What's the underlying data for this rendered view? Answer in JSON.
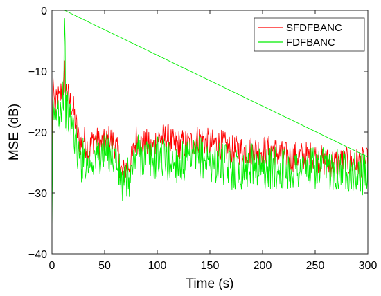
{
  "chart_data": {
    "type": "line",
    "title": "",
    "xlabel": "Time (s)",
    "ylabel": "MSE (dB)",
    "xlim": [
      0,
      300
    ],
    "ylim": [
      -40,
      0
    ],
    "xticks": [
      0,
      50,
      100,
      150,
      200,
      250,
      300
    ],
    "yticks": [
      0,
      -10,
      -20,
      -30,
      -40
    ],
    "xtick_labels": [
      "0",
      "50",
      "100",
      "150",
      "200",
      "250",
      "300"
    ],
    "ytick_labels": [
      "0",
      "−10",
      "−20",
      "−30",
      "−40"
    ],
    "grid": false,
    "legend_position": "top-right",
    "series": [
      {
        "name": "SFDFBANC",
        "color": "#ff0000",
        "x": [
          0,
          1,
          2,
          3,
          5,
          7,
          9,
          10,
          11,
          12,
          13,
          15,
          17,
          20,
          23,
          25,
          28,
          30,
          35,
          40,
          45,
          50,
          55,
          60,
          63,
          65,
          67,
          70,
          75,
          78,
          80,
          85,
          90,
          95,
          100,
          105,
          110,
          115,
          120,
          130,
          140,
          150,
          160,
          170,
          180,
          190,
          200,
          210,
          220,
          230,
          240,
          250,
          260,
          270,
          280,
          290,
          300
        ],
        "y": [
          -30,
          -11,
          -14,
          -17,
          -14,
          -15,
          -13,
          -12,
          -13,
          -10,
          -13,
          -14,
          -15,
          -16,
          -19,
          -21,
          -22,
          -21,
          -23,
          -21,
          -22,
          -22,
          -21,
          -22,
          -24,
          -26,
          -27,
          -26,
          -25,
          -23,
          -21,
          -22,
          -22,
          -23,
          -21,
          -21,
          -21,
          -22,
          -22,
          -22,
          -21,
          -22,
          -22,
          -23,
          -23,
          -23,
          -23,
          -23,
          -24,
          -24,
          -24,
          -24,
          -25,
          -25,
          -25,
          -25,
          -25
        ]
      },
      {
        "name": "FDFBANC",
        "color": "#00ee00",
        "x": [
          0,
          1,
          2,
          3,
          5,
          7,
          9,
          10,
          11,
          12,
          13,
          15,
          17,
          20,
          23,
          25,
          28,
          30,
          35,
          40,
          45,
          50,
          55,
          60,
          63,
          65,
          67,
          70,
          75,
          78,
          80,
          85,
          90,
          95,
          100,
          105,
          110,
          115,
          120,
          130,
          140,
          150,
          160,
          170,
          180,
          190,
          200,
          210,
          220,
          230,
          240,
          250,
          260,
          270,
          280,
          290,
          300
        ],
        "y": [
          -36,
          -14,
          -18,
          -20,
          -16,
          -17,
          -15,
          -13,
          -14,
          0,
          -16,
          -17,
          -18,
          -19,
          -22,
          -24,
          -25,
          -24,
          -25,
          -24,
          -24,
          -24,
          -23,
          -24,
          -26,
          -28,
          -29,
          -28,
          -27,
          -25,
          -23,
          -24,
          -24,
          -25,
          -24,
          -24,
          -25,
          -25,
          -25,
          -25,
          -24,
          -25,
          -25,
          -26,
          -26,
          -25,
          -26,
          -26,
          -26,
          -26,
          -26,
          -26,
          -26,
          -26,
          -26,
          -27,
          -27
        ]
      }
    ]
  }
}
